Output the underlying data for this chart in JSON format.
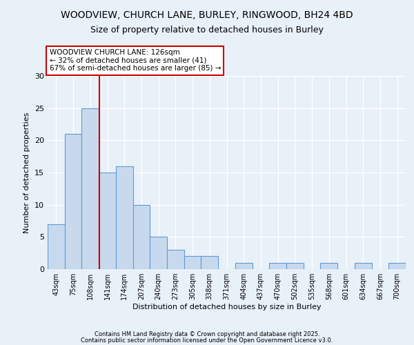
{
  "title_line1": "WOODVIEW, CHURCH LANE, BURLEY, RINGWOOD, BH24 4BD",
  "title_line2": "Size of property relative to detached houses in Burley",
  "xlabel": "Distribution of detached houses by size in Burley",
  "ylabel": "Number of detached properties",
  "bins": [
    "43sqm",
    "75sqm",
    "108sqm",
    "141sqm",
    "174sqm",
    "207sqm",
    "240sqm",
    "273sqm",
    "305sqm",
    "338sqm",
    "371sqm",
    "404sqm",
    "437sqm",
    "470sqm",
    "502sqm",
    "535sqm",
    "568sqm",
    "601sqm",
    "634sqm",
    "667sqm",
    "700sqm"
  ],
  "values": [
    7,
    21,
    25,
    15,
    16,
    10,
    5,
    3,
    2,
    2,
    0,
    1,
    0,
    1,
    1,
    0,
    1,
    0,
    1,
    0,
    1
  ],
  "bar_color": "#c9d9ed",
  "bar_edge_color": "#5b9bd5",
  "annotation_title": "WOODVIEW CHURCH LANE: 126sqm",
  "annotation_line1": "← 32% of detached houses are smaller (41)",
  "annotation_line2": "67% of semi-detached houses are larger (85) →",
  "ylim": [
    0,
    30
  ],
  "yticks": [
    0,
    5,
    10,
    15,
    20,
    25,
    30
  ],
  "footer1": "Contains HM Land Registry data © Crown copyright and database right 2025.",
  "footer2": "Contains public sector information licensed under the Open Government Licence v3.0.",
  "background_color": "#e8f0f8",
  "plot_background": "#e8f0f8",
  "grid_color": "#ffffff",
  "annotation_box_color": "#ffffff",
  "annotation_box_edge": "#cc0000",
  "red_line_color": "#cc0000"
}
